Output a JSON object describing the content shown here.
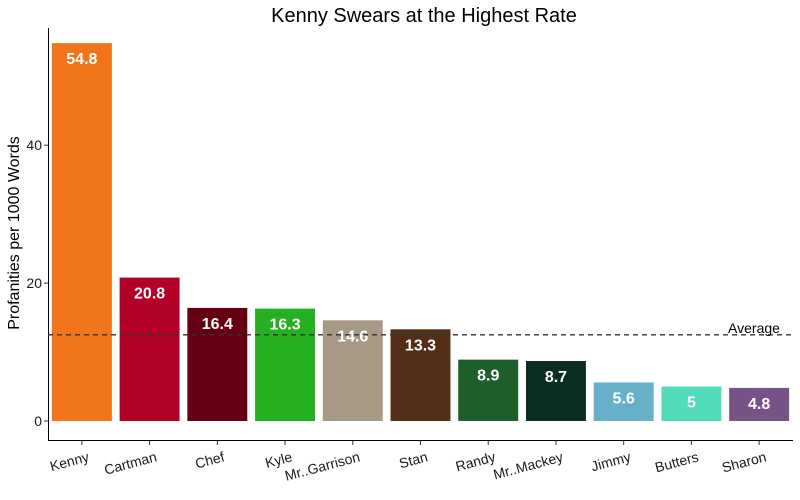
{
  "chart_data": {
    "type": "bar",
    "title": "Kenny Swears at the Highest Rate",
    "xlabel": "",
    "ylabel": "Profanities per 1000 Words",
    "categories": [
      "Kenny",
      "Cartman",
      "Chef",
      "Kyle",
      "Mr..Garrison",
      "Stan",
      "Randy",
      "Mr..Mackey",
      "Jimmy",
      "Butters",
      "Sharon"
    ],
    "values": [
      54.8,
      20.8,
      16.4,
      16.3,
      14.6,
      13.3,
      8.9,
      8.7,
      5.6,
      5,
      4.8
    ],
    "value_labels": [
      "54.8",
      "20.8",
      "16.4",
      "16.3",
      "14.6",
      "13.3",
      "8.9",
      "8.7",
      "5.6",
      "5",
      "4.8"
    ],
    "colors": [
      "#f07419",
      "#b30026",
      "#640012",
      "#24b021",
      "#a89985",
      "#532f17",
      "#1e5e2b",
      "#0b2d22",
      "#66b1c9",
      "#52dbbb",
      "#775287"
    ],
    "ylim": [
      0,
      57
    ],
    "yticks": [
      0,
      20,
      40
    ],
    "reference_line": {
      "label": "Average",
      "value": 12.5,
      "style": "dashed"
    },
    "grid": false,
    "legend": "none"
  }
}
